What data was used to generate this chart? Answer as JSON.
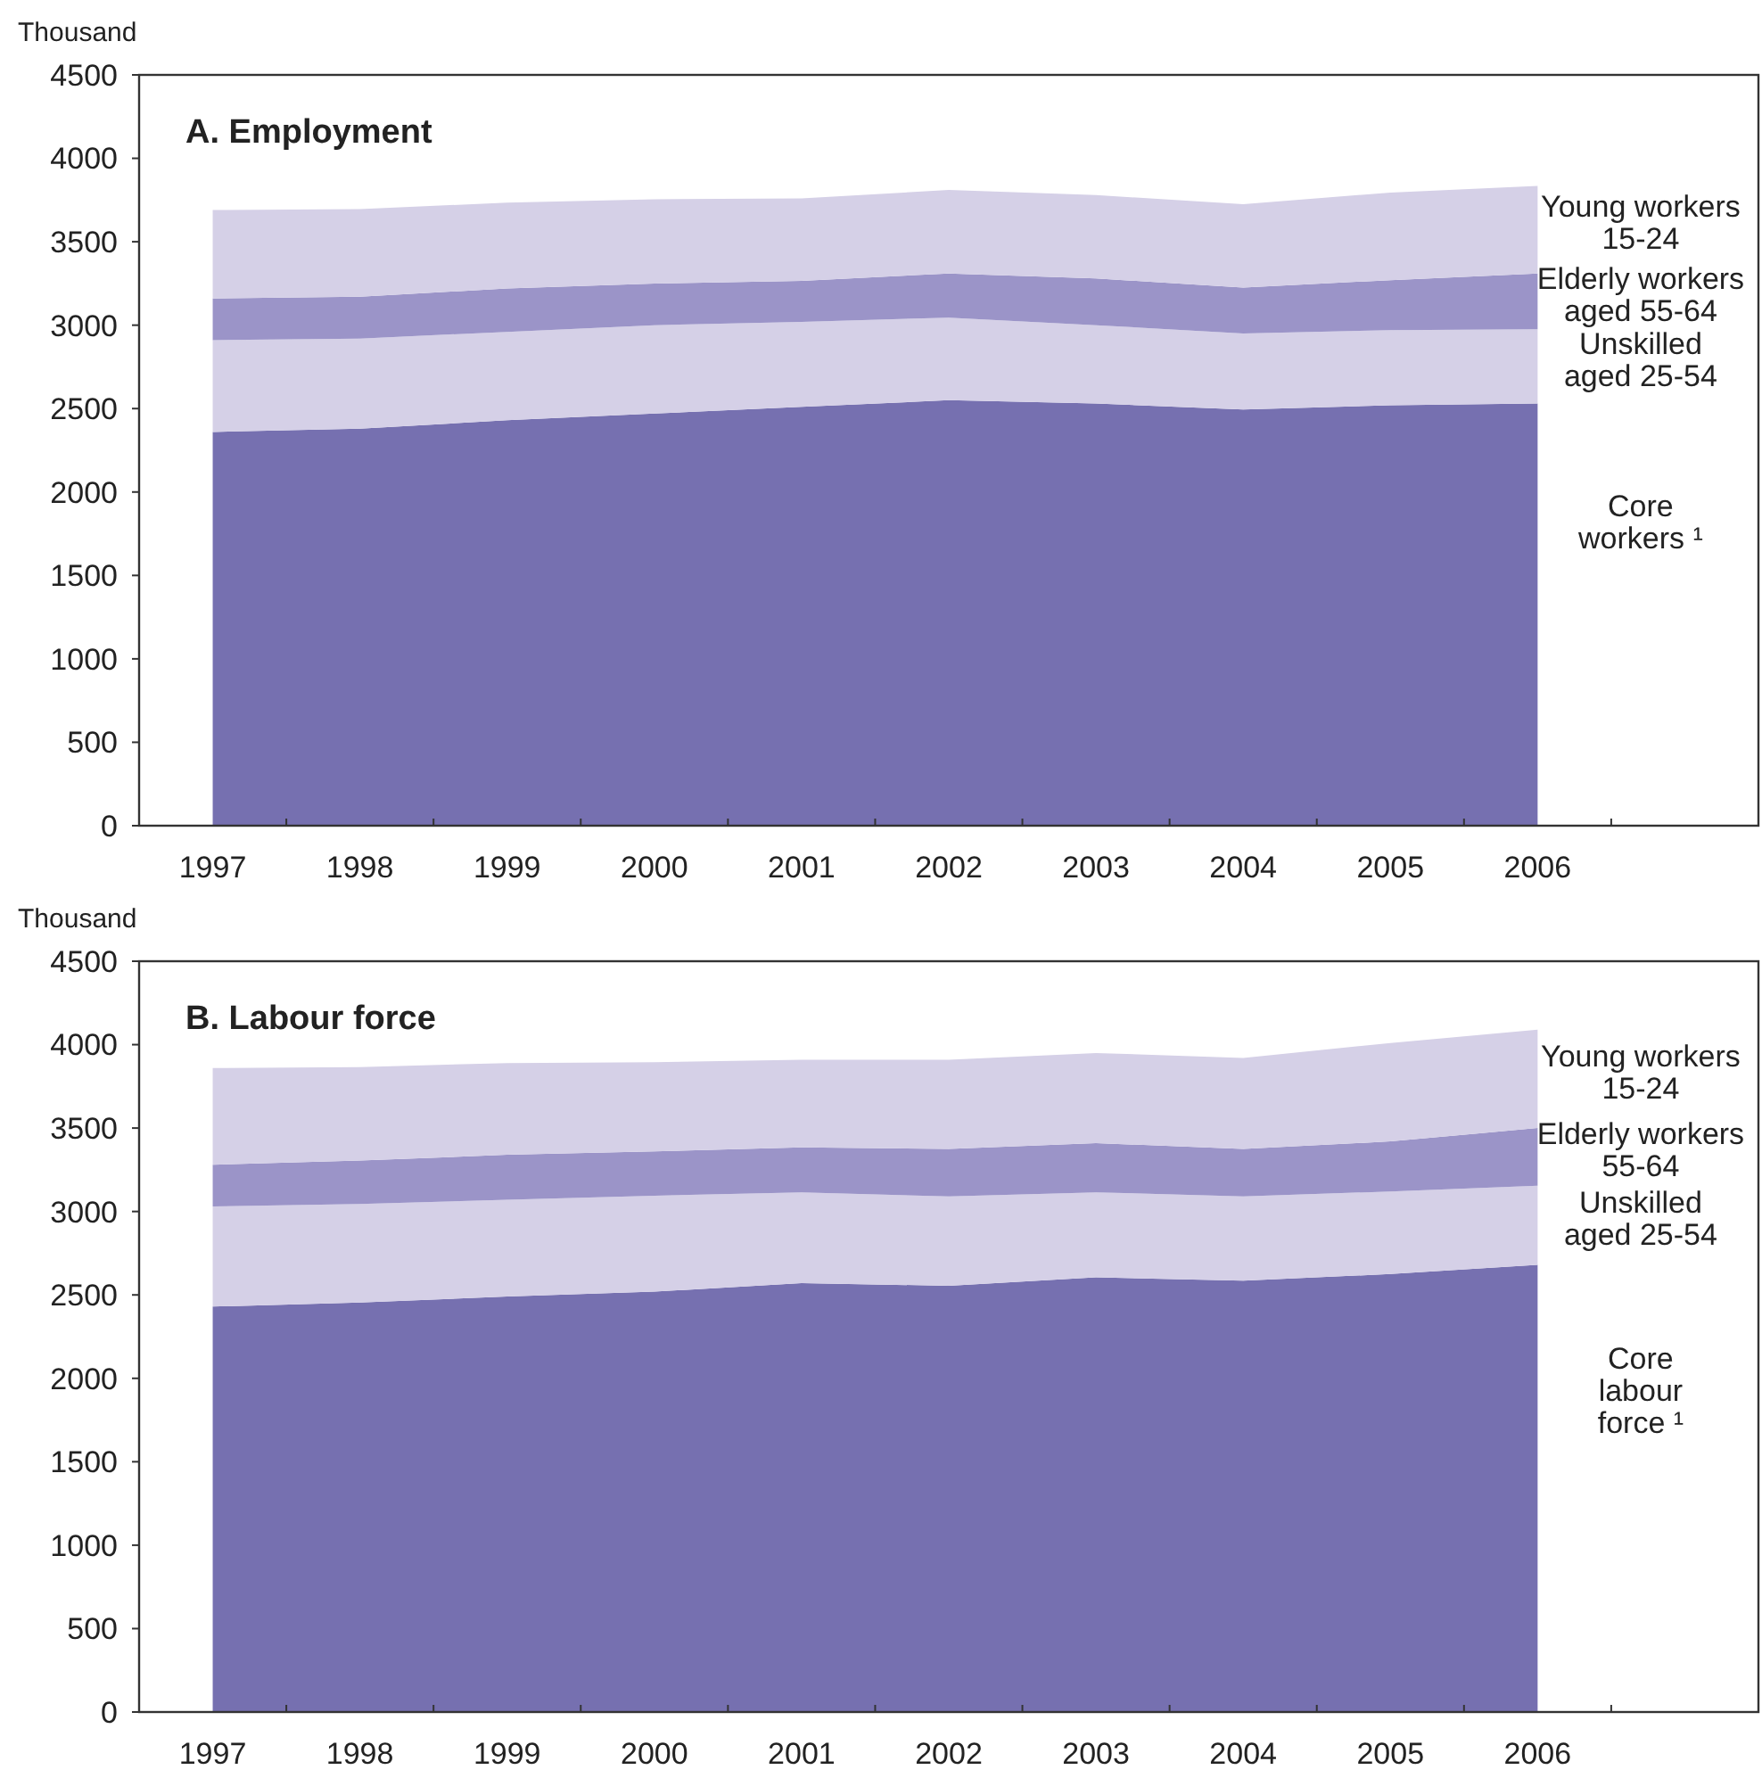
{
  "chart_data": [
    {
      "type": "area",
      "stacked": true,
      "title": "A. Employment",
      "ylabel": "Thousand",
      "categories": [
        "1997",
        "1998",
        "1999",
        "2000",
        "2001",
        "2002",
        "2003",
        "2004",
        "2005",
        "2006",
        null
      ],
      "series": [
        {
          "name": "Core\nworkers ¹",
          "color": "#7670b0",
          "values": [
            2360,
            2380,
            2430,
            2470,
            2510,
            2550,
            2530,
            2495,
            2520,
            2530,
            null
          ]
        },
        {
          "name": "Unskilled\naged 25-54",
          "color": "#d5d0e7",
          "values": [
            550,
            540,
            530,
            530,
            510,
            495,
            470,
            455,
            450,
            445,
            null
          ]
        },
        {
          "name": "Elderly workers\naged 55-64",
          "color": "#9b94c8",
          "values": [
            250,
            250,
            260,
            250,
            245,
            265,
            280,
            275,
            300,
            335,
            null
          ]
        },
        {
          "name": "Young workers\n15-24",
          "color": "#d5d0e7",
          "values": [
            530,
            525,
            515,
            505,
            495,
            500,
            500,
            500,
            525,
            525,
            null
          ]
        }
      ],
      "ylim": [
        0,
        4500
      ],
      "yticks": [
        0,
        500,
        1000,
        1500,
        2000,
        2500,
        3000,
        3500,
        4000,
        4500
      ],
      "grid": false,
      "legend": false
    },
    {
      "type": "area",
      "stacked": true,
      "title": "B. Labour force",
      "ylabel": "Thousand",
      "categories": [
        "1997",
        "1998",
        "1999",
        "2000",
        "2001",
        "2002",
        "2003",
        "2004",
        "2005",
        "2006",
        null
      ],
      "series": [
        {
          "name": "Core\nlabour\nforce ¹",
          "color": "#7670b0",
          "values": [
            2430,
            2455,
            2490,
            2520,
            2570,
            2555,
            2605,
            2585,
            2625,
            2680,
            null
          ]
        },
        {
          "name": "Unskilled\naged 25-54",
          "color": "#d5d0e7",
          "values": [
            600,
            590,
            580,
            575,
            545,
            535,
            510,
            505,
            495,
            475,
            null
          ]
        },
        {
          "name": "Elderly workers\n55-64",
          "color": "#9b94c8",
          "values": [
            250,
            260,
            270,
            265,
            270,
            285,
            295,
            285,
            300,
            345,
            null
          ]
        },
        {
          "name": "Young workers\n15-24",
          "color": "#d5d0e7",
          "values": [
            580,
            560,
            550,
            535,
            525,
            535,
            540,
            545,
            590,
            590,
            null
          ]
        }
      ],
      "ylim": [
        0,
        4500
      ],
      "yticks": [
        0,
        500,
        1000,
        1500,
        2000,
        2500,
        3000,
        3500,
        4000,
        4500
      ],
      "grid": false,
      "legend": false
    }
  ]
}
